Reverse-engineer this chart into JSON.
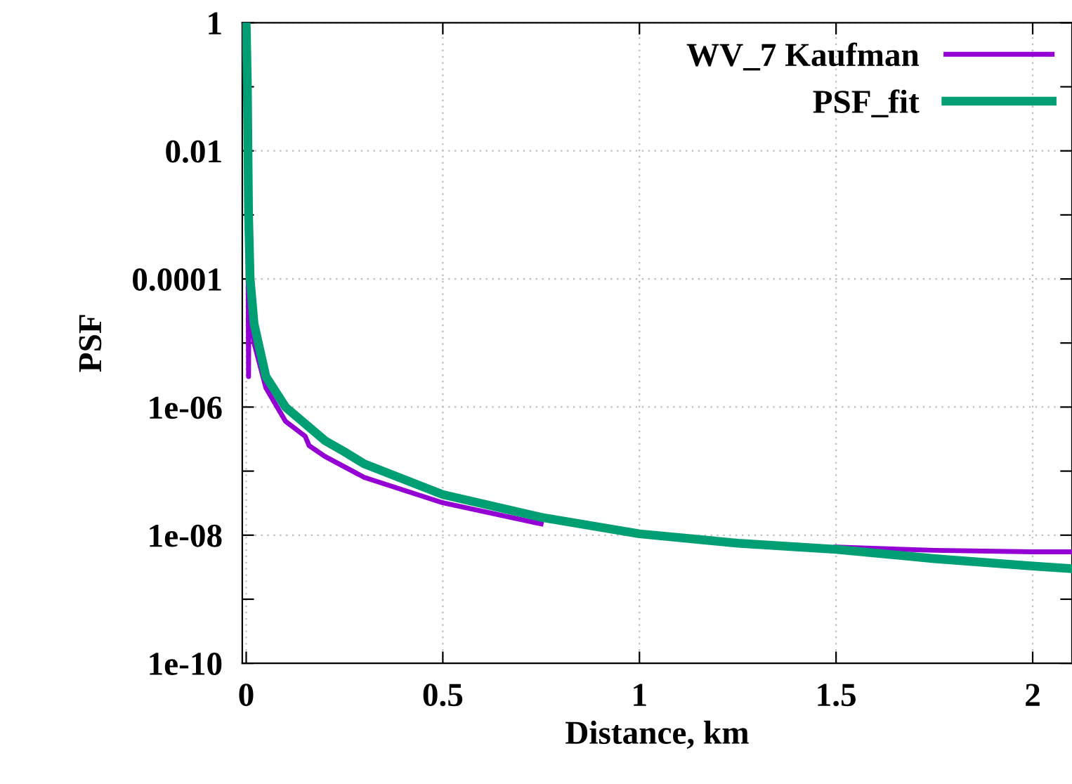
{
  "chart_data": {
    "type": "line",
    "xlabel": "Distance, km",
    "ylabel": "PSF",
    "log": "y",
    "grid": true,
    "legend": "top right",
    "line_style": "solid",
    "marker": "none",
    "xlim": [
      -0.01,
      2.1
    ],
    "xticks": [
      0,
      0.5,
      1,
      1.5,
      2
    ],
    "ylim": [
      1e-10,
      1
    ],
    "yticks": [
      {
        "value": 1e-10,
        "label": "1e-10"
      },
      {
        "value": 1e-09,
        "label": null
      },
      {
        "value": 1e-08,
        "label": "1e-08"
      },
      {
        "value": 1e-07,
        "label": null
      },
      {
        "value": 1e-06,
        "label": "1e-06"
      },
      {
        "value": 1e-05,
        "label": null
      },
      {
        "value": 0.0001,
        "label": "0.0001"
      },
      {
        "value": 0.001,
        "label": null
      },
      {
        "value": 0.01,
        "label": "0.01"
      },
      {
        "value": 0.1,
        "label": null
      },
      {
        "value": 1,
        "label": "1"
      }
    ],
    "series": [
      {
        "name": "WV_7 Kaufman",
        "color": "#9400d3",
        "x": [
          0,
          0.003,
          0.005,
          0.006,
          0.007,
          0.01,
          0.02,
          0.05,
          0.1,
          0.15,
          0.16,
          0.2,
          0.3,
          0.5,
          0.75,
          1,
          1.25,
          1.5,
          1.75,
          2,
          2.1
        ],
        "values": [
          1,
          0.01,
          0.0001,
          3e-06,
          0.0001,
          5e-05,
          1e-05,
          2e-06,
          6e-07,
          3.5e-07,
          2.5e-07,
          1.7e-07,
          8e-08,
          3.2e-08,
          1.5e-08,
          null,
          null,
          6.5e-09,
          5.8e-09,
          5.5e-09,
          5.5e-09
        ]
      },
      {
        "name": "PSF_fit",
        "color": "#009e73",
        "x": [
          0,
          0.003,
          0.006,
          0.01,
          0.02,
          0.05,
          0.1,
          0.2,
          0.25,
          0.3,
          0.5,
          0.75,
          1,
          1.25,
          1.5,
          1.75,
          2,
          2.1
        ],
        "values": [
          1,
          0.1,
          0.001,
          0.0001,
          2e-05,
          3e-06,
          1e-06,
          3e-07,
          2e-07,
          1.3e-07,
          4.3e-08,
          1.9e-08,
          1.05e-08,
          7.5e-09,
          6e-09,
          4.3e-09,
          3.3e-09,
          3e-09
        ]
      }
    ]
  }
}
